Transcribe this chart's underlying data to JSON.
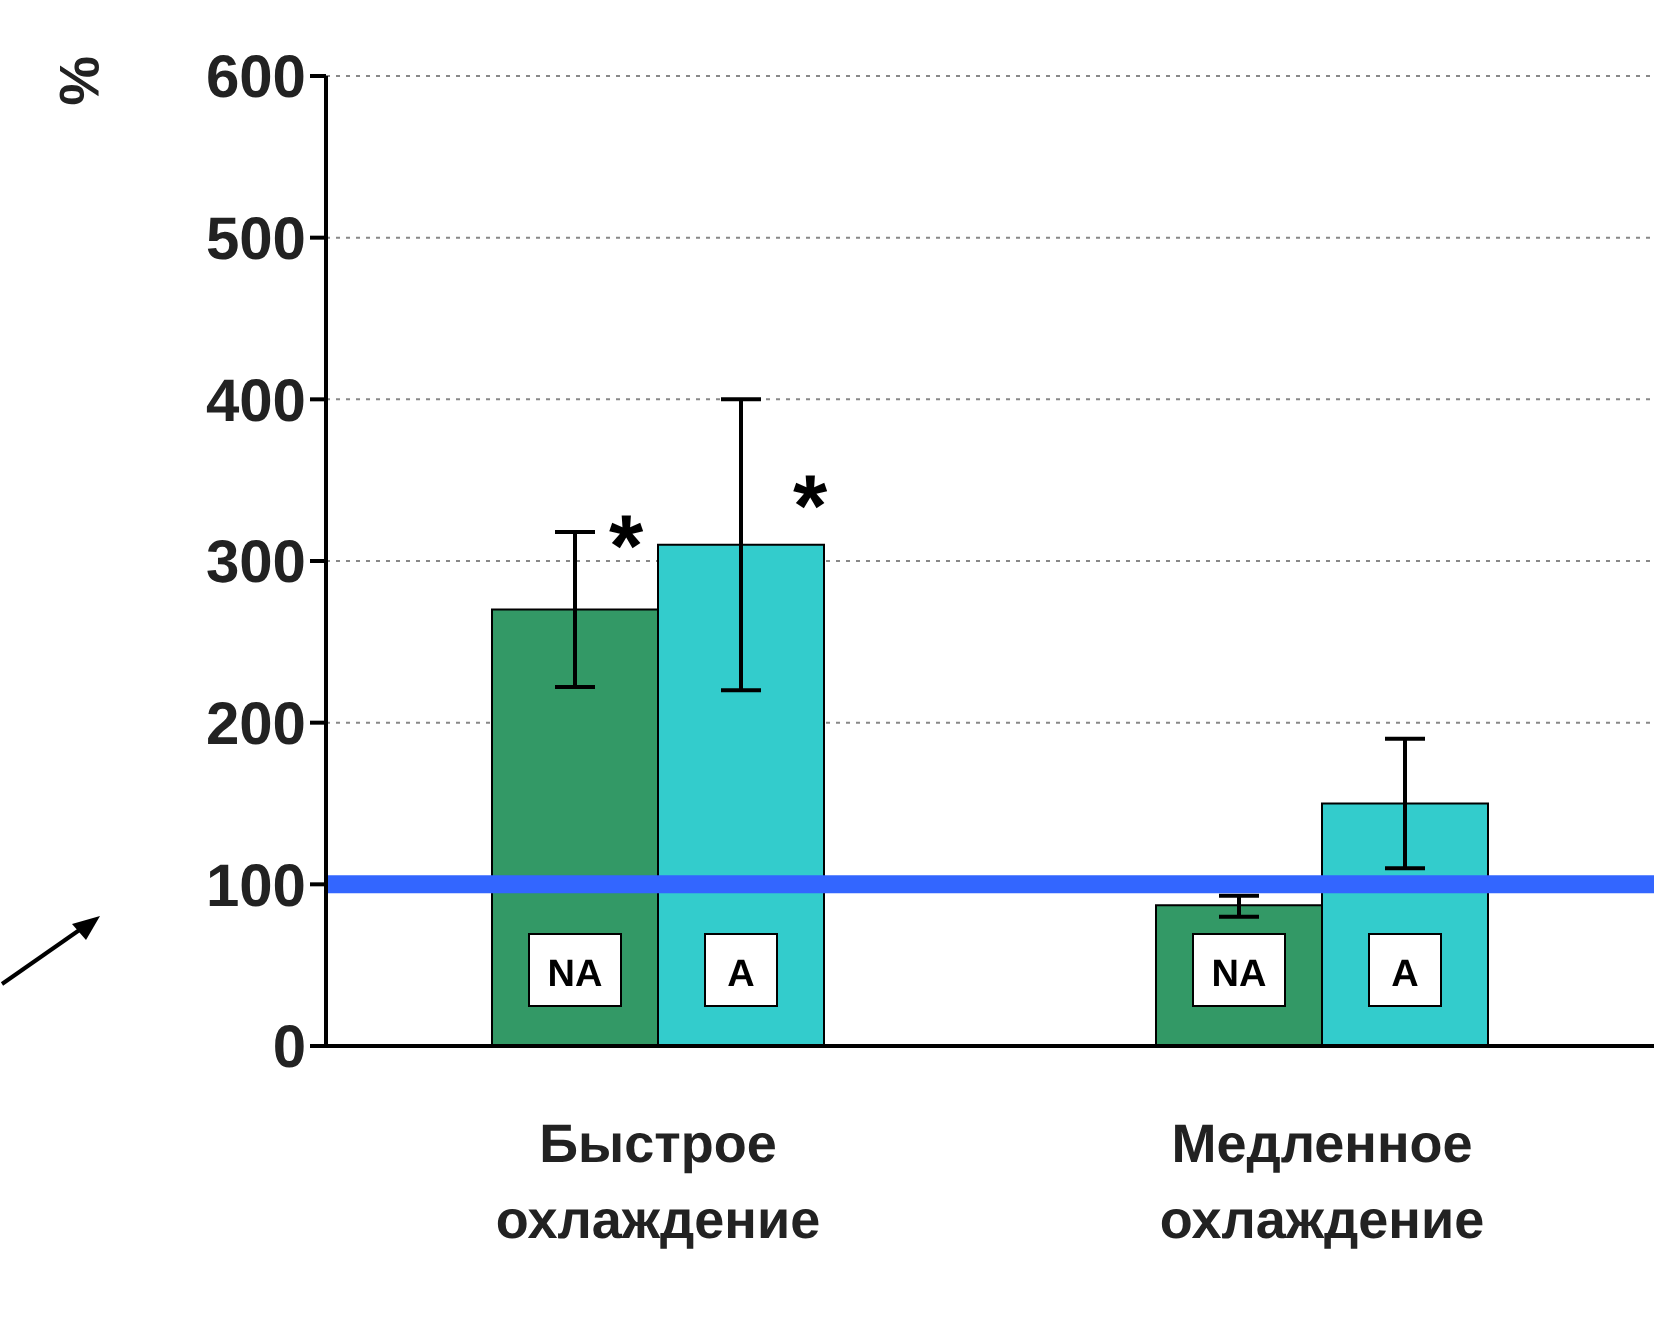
{
  "chart_data": {
    "type": "bar",
    "ylabel": "%",
    "categories": [
      "Быстрое охлаждение",
      "Медленное охлаждение"
    ],
    "series": [
      {
        "name": "NA",
        "color": "#339966",
        "values": [
          270,
          87
        ],
        "errors": [
          [
            222,
            318
          ],
          [
            80,
            93
          ]
        ]
      },
      {
        "name": "A",
        "color": "#33cccc",
        "values": [
          310,
          150
        ],
        "errors": [
          [
            220,
            400
          ],
          [
            110,
            190
          ]
        ]
      }
    ],
    "ylim": [
      0,
      600
    ],
    "yticks": [
      0,
      100,
      200,
      300,
      400,
      500,
      600
    ],
    "grid": "y",
    "ref_lines": [
      {
        "axis": "y",
        "value": 100,
        "color": "#3366ff"
      }
    ],
    "annotations": [
      "*",
      "*"
    ]
  }
}
